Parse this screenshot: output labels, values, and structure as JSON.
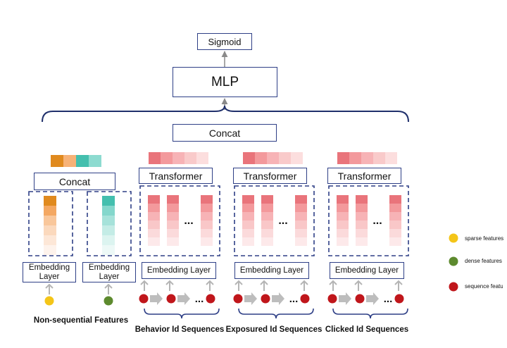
{
  "top": {
    "sigmoid": "Sigmoid",
    "mlp": "MLP",
    "concat": "Concat"
  },
  "non_sequential": {
    "concat": "Concat",
    "embedding_line1": "Embedding",
    "embedding_line2": "Layer",
    "caption": "Non-sequential Features",
    "sparse_feature_color": "#f4c518",
    "dense_feature_color": "#5d8a2e",
    "sparse_embedding_colors": [
      "#e08a1e",
      "#f4a862",
      "#f9c79b",
      "#fbd9bd",
      "#fde7d7",
      "#fef3ec"
    ],
    "dense_embedding_colors": [
      "#44bfae",
      "#84d7cc",
      "#a6e2da",
      "#c4ece6",
      "#dcf4f0",
      "#edf9f7"
    ],
    "concat_strip_colors": [
      "#e08a1e",
      "#f7b277",
      "#44bfae",
      "#8ddbd0"
    ]
  },
  "sequence_branches": [
    {
      "transformer": "Transformer",
      "embedding": "Embedding Layer",
      "caption": "Behavior Id Sequences",
      "ellipsis": "..."
    },
    {
      "transformer": "Transformer",
      "embedding": "Embedding Layer",
      "caption": "Exposured Id Sequences",
      "ellipsis": "..."
    },
    {
      "transformer": "Transformer",
      "embedding": "Embedding Layer",
      "caption": "Clicked Id Sequences",
      "ellipsis": "..."
    }
  ],
  "sequence_colors": {
    "strip": [
      "#e9747b",
      "#f3999c",
      "#f7b3b6",
      "#f9caca",
      "#fcdede"
    ],
    "column": [
      "#e9747b",
      "#f3999c",
      "#f7b3b6",
      "#f9c7c8",
      "#fbdadb",
      "#fde9ea"
    ],
    "node": "#c0161b",
    "arrow": "#bdbdbd",
    "frame": "#2e3f86"
  },
  "legend": [
    {
      "label": "sparse features",
      "color": "#f4c518"
    },
    {
      "label": "dense features",
      "color": "#5d8a2e"
    },
    {
      "label": "sequence features",
      "color": "#c0161b"
    }
  ]
}
